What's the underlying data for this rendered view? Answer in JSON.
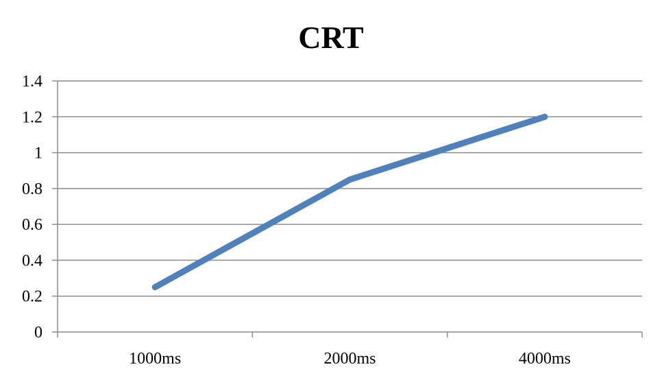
{
  "chart_data": {
    "type": "line",
    "title": "CRT",
    "xlabel": "",
    "ylabel": "",
    "categories": [
      "1000ms",
      "2000ms",
      "4000ms"
    ],
    "series": [
      {
        "name": "CRT",
        "values": [
          0.25,
          0.85,
          1.2
        ]
      }
    ],
    "ylim": [
      0,
      1.4
    ],
    "yticks": [
      0,
      0.2,
      0.4,
      0.6,
      0.8,
      1,
      1.2,
      1.4
    ],
    "ytick_labels": [
      "0",
      "0.2",
      "0.4",
      "0.6",
      "0.8",
      "1",
      "1.2",
      "1.4"
    ],
    "grid": true,
    "legend": "none",
    "colors": {
      "series": "#4f81bd",
      "grid": "#8c8c8c",
      "text": "#000000"
    }
  }
}
